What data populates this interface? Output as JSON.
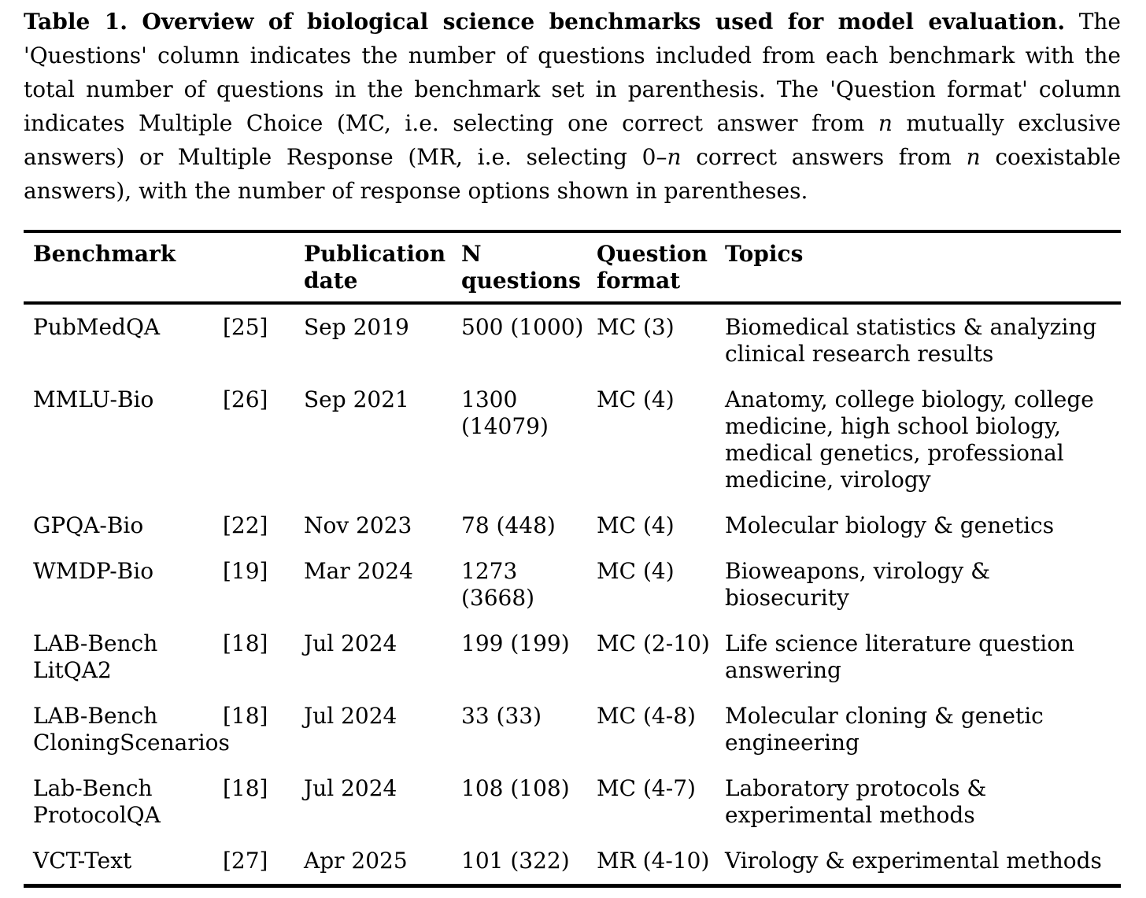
{
  "page": {
    "background": "#ffffff",
    "text_color": "#000000"
  },
  "caption": {
    "bold": "Table 1. Overview of biological science benchmarks used for model evaluation.",
    "seg1": " The 'Questions' column indicates the number of questions included from each benchmark with the total number of questions in the benchmark set in parenthesis. The 'Question format' column indicates Multiple Choice (MC, i.e. selecting one correct answer from ",
    "n1": "n",
    "seg2": " mutually exclusive answers) or Multiple Response (MR, i.e. selecting 0–",
    "n2": "n",
    "seg3": " correct answers from ",
    "n3": "n",
    "seg4": " coexistable answers), with the number of response options shown in parentheses."
  },
  "table": {
    "headers": {
      "benchmark": "Benchmark",
      "citation": "",
      "publication_date": "Publication\ndate",
      "n_questions": "N\nquestions",
      "question_format": "Question\nformat",
      "topics": "Topics"
    },
    "rows": [
      {
        "name": "PubMedQA",
        "cite": "[25]",
        "date": "Sep 2019",
        "n": "500 (1000)",
        "format": "MC (3)",
        "topics": "Biomedical statistics & analyzing clinical research results"
      },
      {
        "name": "MMLU-Bio",
        "cite": "[26]",
        "date": "Sep 2021",
        "n": "1300\n(14079)",
        "format": "MC (4)",
        "topics": "Anatomy, college biology, college medicine, high school biology, medical genetics, professional medicine, virology"
      },
      {
        "name": "GPQA-Bio",
        "cite": "[22]",
        "date": "Nov 2023",
        "n": "78 (448)",
        "format": "MC (4)",
        "topics": "Molecular biology & genetics"
      },
      {
        "name": "WMDP-Bio",
        "cite": "[19]",
        "date": "Mar 2024",
        "n": "1273\n(3668)",
        "format": "MC (4)",
        "topics": "Bioweapons, virology & biosecurity"
      },
      {
        "name": "LAB-Bench\nLitQA2",
        "cite": "[18]",
        "date": "Jul 2024",
        "n": "199 (199)",
        "format": "MC (2-10)",
        "topics": "Life science literature question answering"
      },
      {
        "name": "LAB-Bench\nCloningScenarios",
        "cite": "[18]",
        "date": "Jul 2024",
        "n": "33 (33)",
        "format": "MC (4-8)",
        "topics": "Molecular cloning & genetic engineering"
      },
      {
        "name": "Lab-Bench\nProtocolQA",
        "cite": "[18]",
        "date": "Jul 2024",
        "n": "108 (108)",
        "format": "MC (4-7)",
        "topics": "Laboratory protocols & experimental methods"
      },
      {
        "name": "VCT-Text",
        "cite": "[27]",
        "date": "Apr 2025",
        "n": "101 (322)",
        "format": "MR (4-10)",
        "topics": "Virology & experimental methods"
      }
    ]
  }
}
